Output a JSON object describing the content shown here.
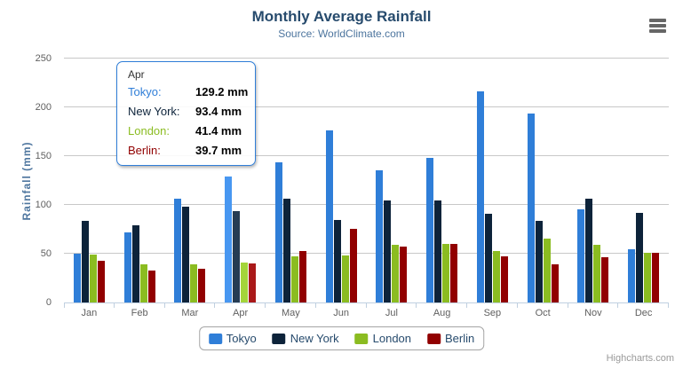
{
  "header": {
    "title": "Monthly Average Rainfall",
    "subtitle": "Source: WorldClimate.com"
  },
  "chart_data": {
    "type": "bar",
    "title": "Monthly Average Rainfall",
    "subtitle": "Source: WorldClimate.com",
    "xlabel": "",
    "ylabel": "Rainfall (mm)",
    "ylim": [
      0,
      250
    ],
    "ytick_interval": 50,
    "grid": true,
    "legend_position": "bottom",
    "categories": [
      "Jan",
      "Feb",
      "Mar",
      "Apr",
      "May",
      "Jun",
      "Jul",
      "Aug",
      "Sep",
      "Oct",
      "Nov",
      "Dec"
    ],
    "hovered_category": "Apr",
    "series": [
      {
        "name": "Tokyo",
        "color": "#2f7ed8",
        "hover_color": "#4897f1",
        "values": [
          49.9,
          71.5,
          106.4,
          129.2,
          144.0,
          176.0,
          135.6,
          148.5,
          216.4,
          194.1,
          95.6,
          54.4
        ]
      },
      {
        "name": "New York",
        "color": "#0d233a",
        "hover_color": "#263c53",
        "values": [
          83.6,
          78.8,
          98.5,
          93.4,
          106.0,
          84.5,
          105.0,
          104.3,
          91.2,
          83.5,
          106.6,
          92.3
        ]
      },
      {
        "name": "London",
        "color": "#8bbc21",
        "hover_color": "#a4d53a",
        "values": [
          48.9,
          38.8,
          39.3,
          41.4,
          47.0,
          48.3,
          59.0,
          59.6,
          52.4,
          65.2,
          59.3,
          51.2
        ]
      },
      {
        "name": "Berlin",
        "color": "#910000",
        "hover_color": "#aa1919",
        "values": [
          42.4,
          33.2,
          34.5,
          39.7,
          52.6,
          75.5,
          57.4,
          60.4,
          47.6,
          39.1,
          46.8,
          51.1
        ]
      }
    ]
  },
  "tooltip": {
    "header": "Apr",
    "border_color": "#2f7ed8",
    "rows": [
      {
        "label": "Tokyo:",
        "value": "129.2 mm",
        "color": "#2f7ed8"
      },
      {
        "label": "New York:",
        "value": "93.4 mm",
        "color": "#0d233a"
      },
      {
        "label": "London:",
        "value": "41.4 mm",
        "color": "#8bbc21"
      },
      {
        "label": "Berlin:",
        "value": "39.7 mm",
        "color": "#910000"
      }
    ]
  },
  "colors": {
    "title": "#274b6d",
    "subtitle": "#4d759e",
    "axis_labels": "#606060",
    "gridline": "#c8c8c8",
    "axis_line": "#c0d0e0"
  },
  "icons": {
    "context_menu": "hamburger-menu-icon"
  },
  "credits": {
    "label": "Highcharts.com"
  }
}
